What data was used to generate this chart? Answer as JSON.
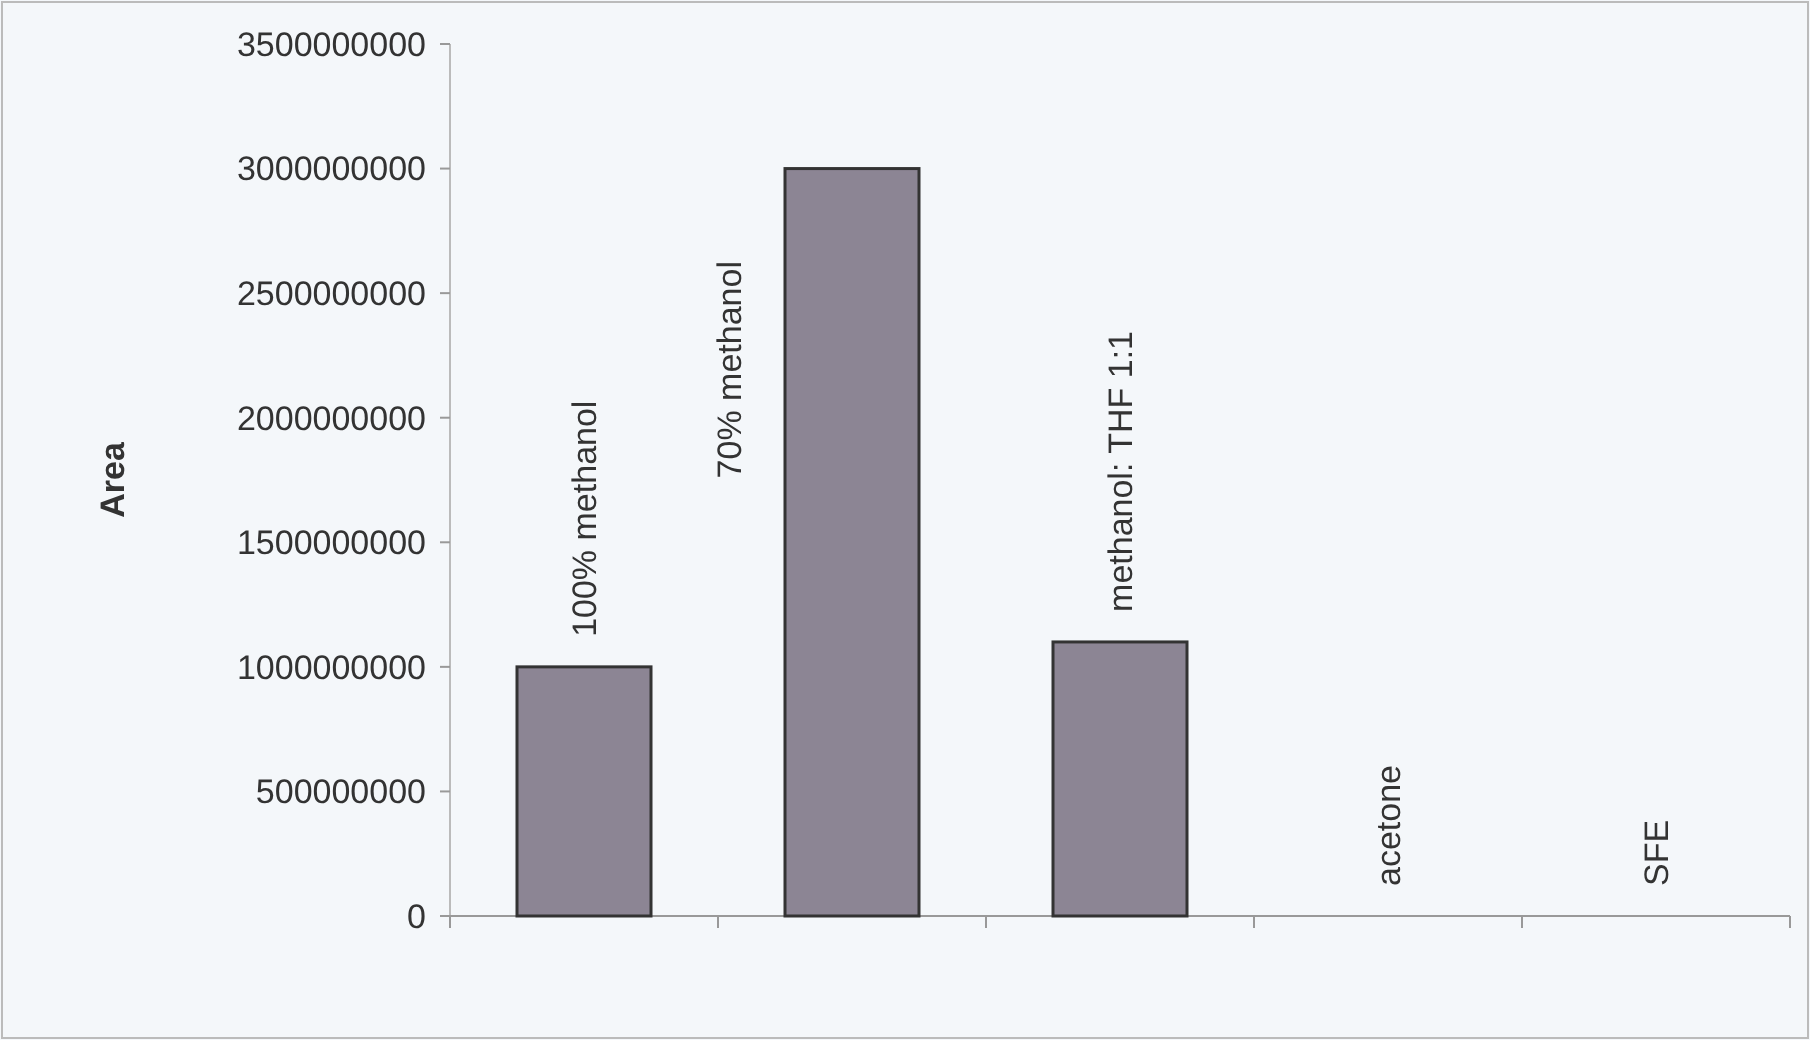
{
  "chart_data": {
    "type": "bar",
    "ylabel": "Area",
    "categories": [
      "100% methanol",
      "70% methanol",
      "methanol: THF 1:1",
      "acetone",
      "SFE"
    ],
    "values": [
      1000000000,
      3000000000,
      1100000000,
      0,
      0
    ],
    "color": "#8c8594",
    "ylim": [
      0,
      3500000000
    ],
    "yticks": [
      0,
      500000000,
      1000000000,
      1500000000,
      2000000000,
      2500000000,
      3000000000,
      3500000000
    ],
    "grid": false
  }
}
